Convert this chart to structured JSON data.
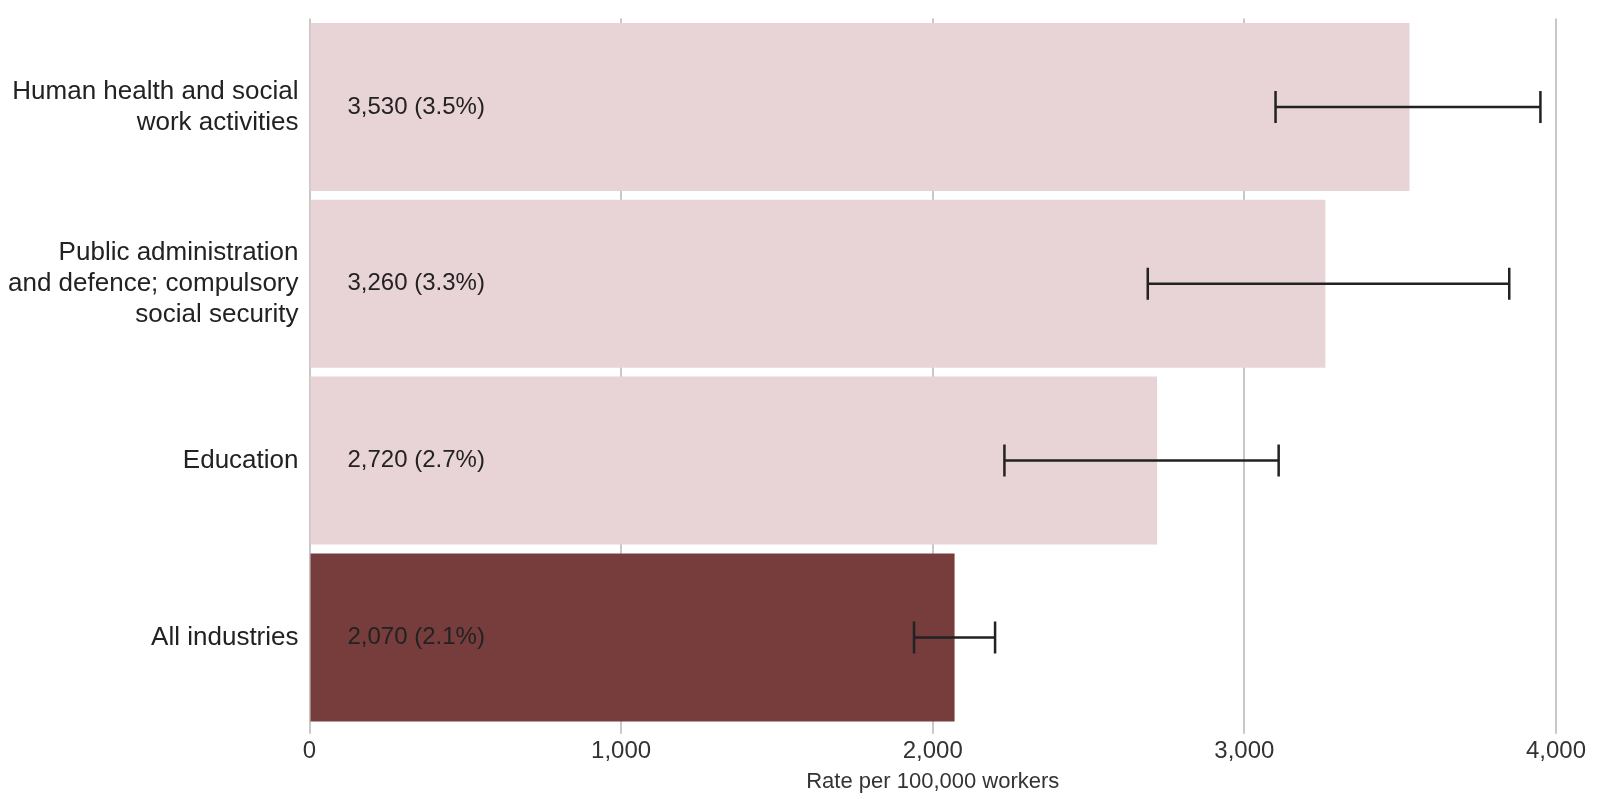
{
  "chart_data": {
    "type": "bar",
    "orientation": "horizontal",
    "xlabel": "Rate per 100,000 workers",
    "categories": [
      "Human health and social work activities",
      "Public administration and defence; compulsory social security",
      "Education",
      "All industries"
    ],
    "values": [
      3530,
      3260,
      2720,
      2070
    ],
    "colors": [
      "#e8d4d6",
      "#e8d4d6",
      "#e8d4d6",
      "#773c3c"
    ],
    "errors": [
      [
        3100,
        3950
      ],
      [
        2690,
        3850
      ],
      [
        2230,
        3110
      ],
      [
        1940,
        2200
      ]
    ],
    "value_labels": [
      "3,530 (3.5%)",
      "3,260 (3.3%)",
      "2,720 (2.7%)",
      "2,070 (2.1%)"
    ],
    "xlim": [
      0,
      4000
    ],
    "xticks": [
      {
        "value": 0,
        "label": "0"
      },
      {
        "value": 1000,
        "label": "1,000"
      },
      {
        "value": 2000,
        "label": "2,000"
      },
      {
        "value": 3000,
        "label": "3,000"
      },
      {
        "value": 4000,
        "label": "4,000"
      }
    ],
    "grid": "x",
    "legend": false
  }
}
